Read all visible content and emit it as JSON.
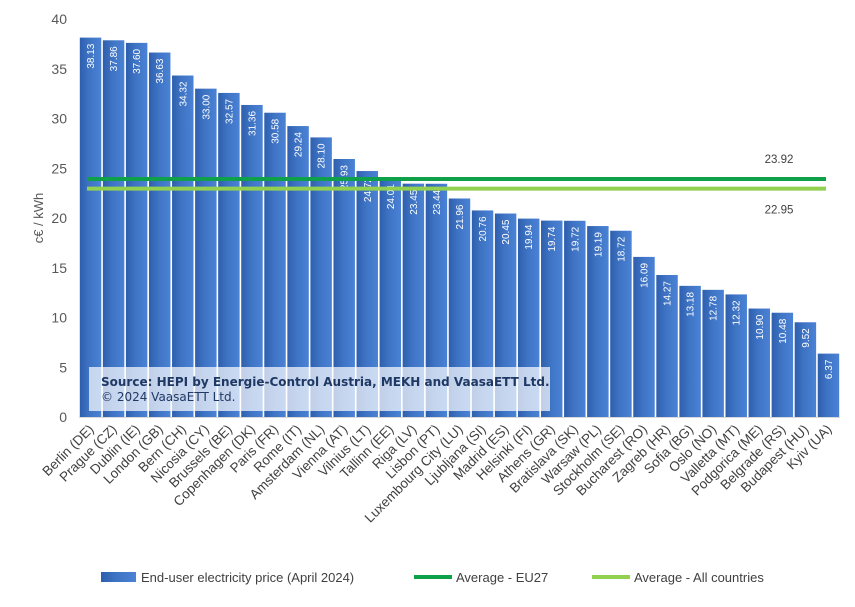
{
  "chart_data": {
    "type": "bar",
    "ylabel": "c€ / kWh",
    "ylim": [
      0,
      40
    ],
    "yticks": [
      0,
      5,
      10,
      15,
      20,
      25,
      30,
      35,
      40
    ],
    "grid": false,
    "categories": [
      "Berlin (DE)",
      "Prague (CZ)",
      "Dublin (IE)",
      "London (GB)",
      "Bern (CH)",
      "Nicosia (CY)",
      "Brussels (BE)",
      "Copenhagen (DK)",
      "Paris (FR)",
      "Rome (IT)",
      "Amsterdam (NL)",
      "Vienna (AT)",
      "Vilnius (LT)",
      "Tallinn (EE)",
      "Riga (LV)",
      "Lisbon (PT)",
      "Luxembourg City (LU)",
      "Ljubljana (SI)",
      "Madrid (ES)",
      "Helsinki (FI)",
      "Athens (GR)",
      "Bratislava (SK)",
      "Warsaw (PL)",
      "Stockholm (SE)",
      "Bucharest (RO)",
      "Zagreb (HR)",
      "Sofia (BG)",
      "Oslo (NO)",
      "Valletta (MT)",
      "Podgorica (ME)",
      "Belgrade (RS)",
      "Budapest (HU)",
      "Kyiv (UA)"
    ],
    "series": [
      {
        "name": "End-user electricity price (April 2024)",
        "color": "#3f74c4",
        "values": [
          38.13,
          37.86,
          37.6,
          36.63,
          34.32,
          33.0,
          32.57,
          31.36,
          30.58,
          29.24,
          28.1,
          25.93,
          24.72,
          24.01,
          23.45,
          23.44,
          21.96,
          20.76,
          20.45,
          19.94,
          19.74,
          19.72,
          19.19,
          18.72,
          16.09,
          14.27,
          13.18,
          12.78,
          12.32,
          10.9,
          10.48,
          9.52,
          6.37
        ],
        "labels": [
          "38.13",
          "37.86",
          "37.60",
          "36.63",
          "34.32",
          "33.00",
          "32.57",
          "31.36",
          "30.58",
          "29.24",
          "28.10",
          "25.93",
          "24.72",
          "24.01",
          "23.45",
          "23.44",
          "21.96",
          "20.76",
          "20.45",
          "19.94",
          "19.74",
          "19.72",
          "19.19",
          "18.72",
          "16.09",
          "14.27",
          "13.18",
          "12.78",
          "12.32",
          "10.90",
          "10.48",
          "9.52",
          "6.37"
        ]
      }
    ],
    "reference_lines": [
      {
        "name": "Average - EU27",
        "value": 23.92,
        "label": "23.92",
        "color": "#0fa04a"
      },
      {
        "name": "Average - All countries",
        "value": 22.95,
        "label": "22.95",
        "color": "#92d050"
      }
    ],
    "legend_position": "bottom",
    "source_line1": "Source: HEPI by Energie-Control Austria, MEKH and VaasaETT Ltd.",
    "source_line2": "© 2024 VaasaETT Ltd."
  }
}
